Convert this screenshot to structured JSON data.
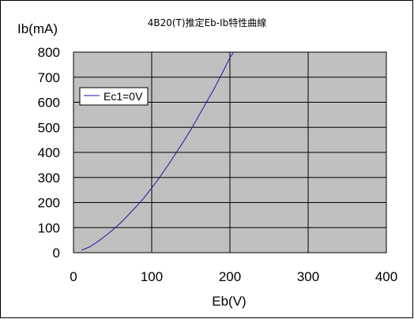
{
  "chart_data": {
    "type": "line",
    "title": "4B20(T)推定Eb-Ib特性曲線",
    "xlabel": "Eb(V)",
    "ylabel": "Ib(mA)",
    "xlim": [
      0,
      400
    ],
    "ylim": [
      0,
      800
    ],
    "xticks": [
      "0",
      "100",
      "200",
      "300",
      "400"
    ],
    "yticks": [
      "0",
      "100",
      "200",
      "300",
      "400",
      "500",
      "600",
      "700",
      "800"
    ],
    "grid": true,
    "background": "gray",
    "legend_position": "top-left",
    "colors": {
      "plot_background": "#c0c0c0",
      "series_line": "#1a1aa0"
    },
    "series": [
      {
        "name": "Ec1=0V",
        "x": [
          10,
          20,
          30,
          40,
          50,
          60,
          70,
          80,
          90,
          100,
          110,
          120,
          130,
          140,
          150,
          160,
          170,
          180,
          190,
          200,
          205
        ],
        "y": [
          10,
          22,
          42,
          65,
          90,
          118,
          150,
          183,
          218,
          258,
          300,
          345,
          392,
          440,
          490,
          545,
          600,
          655,
          715,
          778,
          800
        ]
      }
    ]
  }
}
